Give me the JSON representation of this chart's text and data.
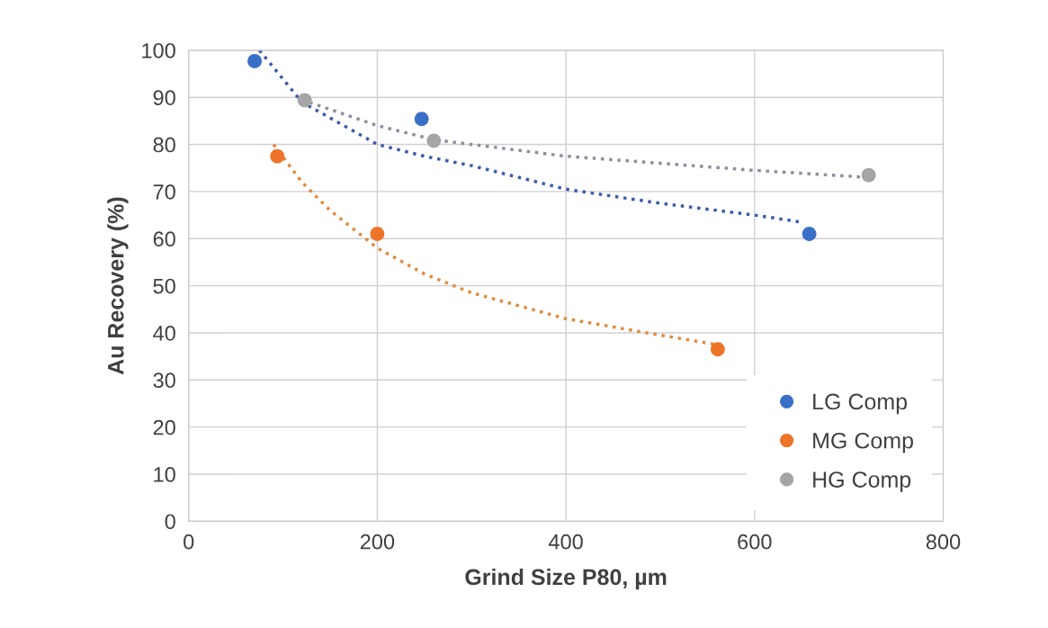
{
  "chart_data": {
    "type": "scatter",
    "xlabel": "Grind Size P80, µm",
    "ylabel": "Au Recovery (%)",
    "xlim": [
      0,
      800
    ],
    "xticks": [
      0,
      200,
      400,
      600,
      800
    ],
    "ylim": [
      0,
      100
    ],
    "yticks": [
      0,
      10,
      20,
      30,
      40,
      50,
      60,
      70,
      80,
      90,
      100
    ],
    "grid": true,
    "legend": "bottom right",
    "marker": "circle",
    "series": [
      {
        "name": "LG Comp",
        "color": "#3a6fc8",
        "x": [
          70,
          247,
          658
        ],
        "values": [
          97.7,
          85.4,
          61
        ]
      },
      {
        "name": "MG Comp",
        "color": "#ed7428",
        "x": [
          94,
          200,
          561
        ],
        "values": [
          77.5,
          61,
          36.5
        ]
      },
      {
        "name": "HG Comp",
        "color": "#a5a5a5",
        "x": [
          123,
          260,
          721
        ],
        "values": [
          89.4,
          80.8,
          73.5
        ]
      },
      {
        "type": "line",
        "line_style": "dotted",
        "marker": "none",
        "color": "#3a5aa8",
        "x": [
          75,
          120,
          200,
          250,
          300,
          400,
          500,
          600,
          650
        ],
        "values": [
          100,
          89,
          80,
          77.5,
          75.5,
          70.5,
          67.5,
          65,
          63.5
        ]
      },
      {
        "type": "line",
        "line_style": "dotted",
        "marker": "none",
        "color": "#e08a3c",
        "x": [
          90,
          120,
          150,
          200,
          250,
          300,
          400,
          500,
          560
        ],
        "values": [
          80,
          72,
          66,
          58,
          52.5,
          48.5,
          43,
          39.5,
          37.5
        ]
      },
      {
        "type": "line",
        "line_style": "dotted",
        "marker": "none",
        "color": "#8a8fa0",
        "x": [
          120,
          200,
          260,
          400,
          500,
          600,
          720
        ],
        "values": [
          89.5,
          84,
          81,
          77.5,
          76,
          74.5,
          73
        ]
      }
    ]
  }
}
